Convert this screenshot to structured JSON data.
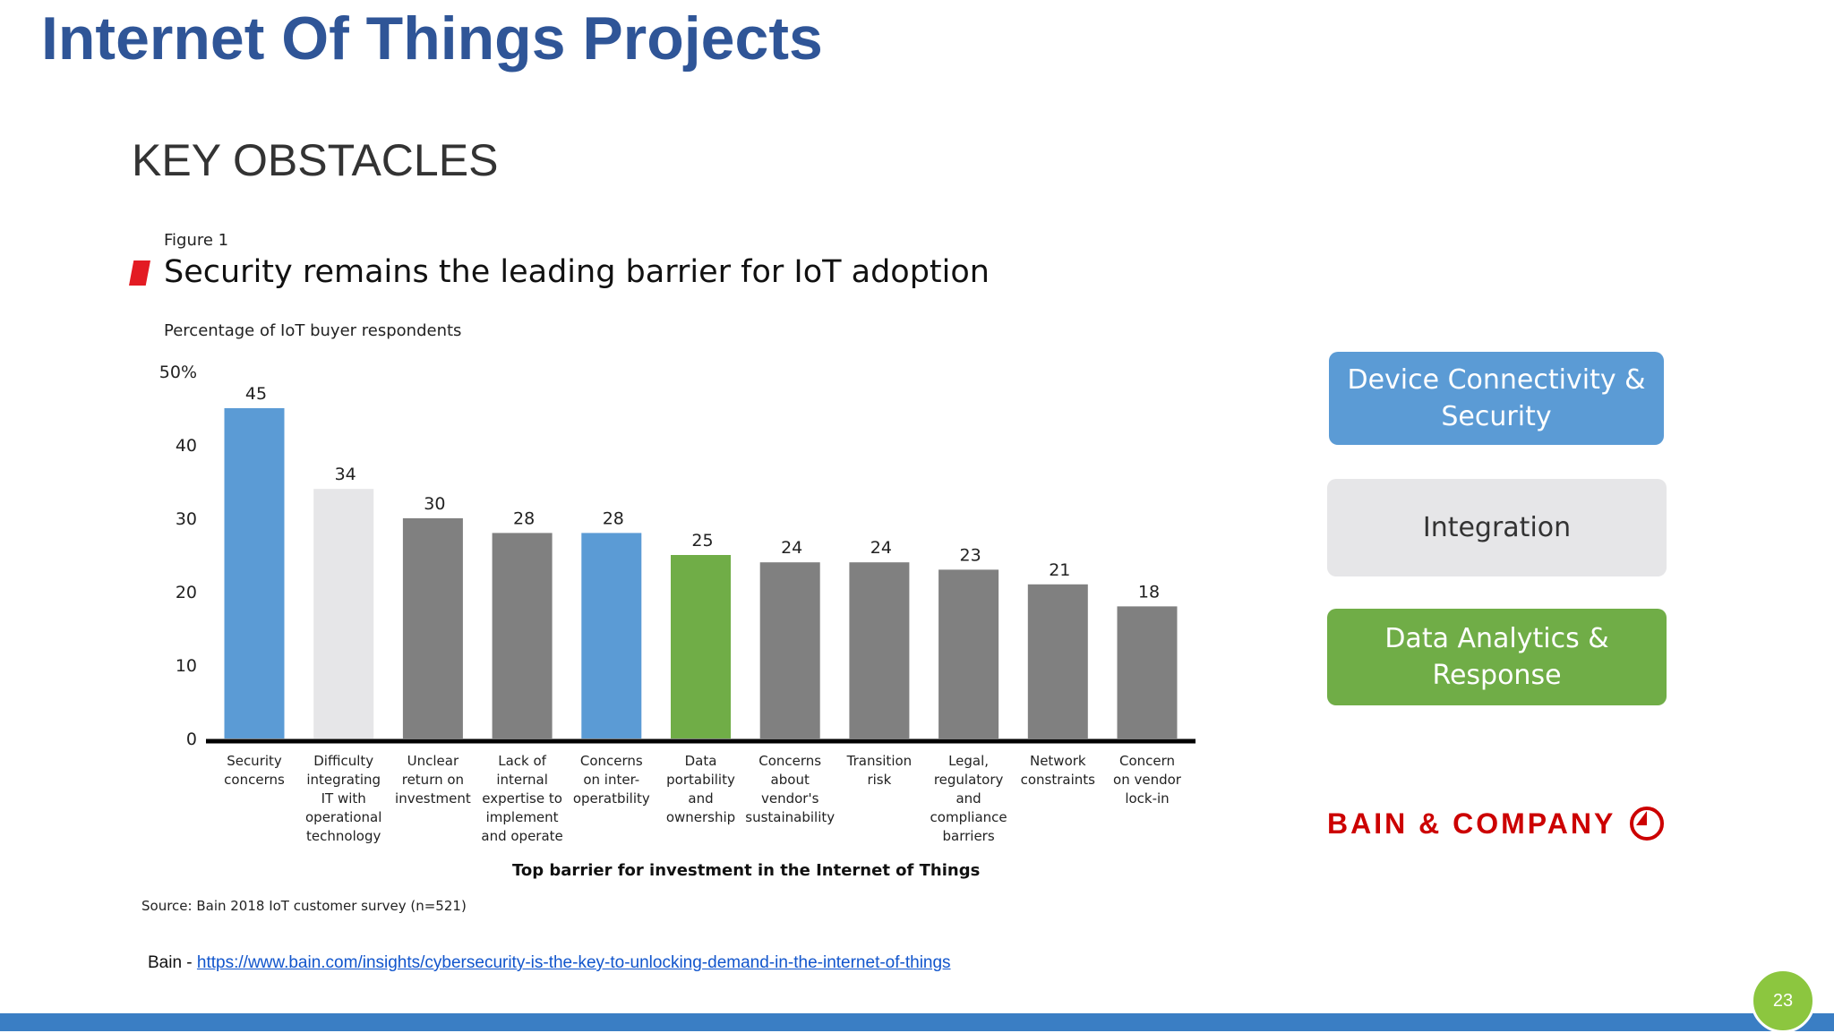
{
  "slide": {
    "title": "Internet Of Things Projects",
    "section_title": "KEY OBSTACLES",
    "page_number": "23"
  },
  "figure": {
    "label": "Figure 1",
    "source": "Source: Bain 2018 IoT customer survey (n=521)"
  },
  "reference": {
    "prefix": "Bain - ",
    "url": "https://www.bain.com/insights/cybersecurity-is-the-key-to-unlocking-demand-in-the-internet-of-things"
  },
  "categories_boxes": [
    {
      "label": "Device Connectivity & Security",
      "color": "#5b9bd5"
    },
    {
      "label": "Integration",
      "color": "#e6e6e8"
    },
    {
      "label": "Data Analytics & Response",
      "color": "#70ad47"
    }
  ],
  "logo": {
    "text": "BAIN & COMPANY",
    "icon": "bain-compass-icon",
    "color": "#cc0000"
  },
  "chart_data": {
    "type": "bar",
    "title": "Security remains the leading barrier for IoT adoption",
    "ylabel": "Percentage of IoT buyer respondents",
    "xlabel": "Top barrier for investment in the Internet of Things",
    "ylim": [
      0,
      50
    ],
    "yticks": [
      "0",
      "10",
      "20",
      "30",
      "40",
      "50%"
    ],
    "grid": false,
    "categories": [
      "Security concerns",
      "Difficulty integrating IT with operational technology",
      "Unclear return on investment",
      "Lack of internal expertise to implement and operate",
      "Concerns on inter-operatbility",
      "Data portability and ownership",
      "Concerns about vendor's sustainability",
      "Transition risk",
      "Legal, regulatory and compliance barriers",
      "Network constraints",
      "Concern on vendor lock-in"
    ],
    "category_lines": [
      [
        "Security",
        "concerns"
      ],
      [
        "Difficulty",
        "integrating",
        "IT with",
        "operational",
        "technology"
      ],
      [
        "Unclear",
        "return on",
        "investment"
      ],
      [
        "Lack of",
        "internal",
        "expertise to",
        "implement",
        "and operate"
      ],
      [
        "Concerns",
        "on inter-",
        "operatbility"
      ],
      [
        "Data",
        "portability",
        "and",
        "ownership"
      ],
      [
        "Concerns",
        "about",
        "vendor's",
        "sustainability"
      ],
      [
        "Transition",
        "risk"
      ],
      [
        "Legal,",
        "regulatory",
        "and",
        "compliance",
        "barriers"
      ],
      [
        "Network",
        "constraints"
      ],
      [
        "Concern",
        "on vendor",
        "lock-in"
      ]
    ],
    "values": [
      45,
      34,
      30,
      28,
      28,
      25,
      24,
      24,
      23,
      21,
      18
    ],
    "colors": [
      "#5b9bd5",
      "#e6e6e8",
      "#808080",
      "#808080",
      "#5b9bd5",
      "#70ad47",
      "#808080",
      "#808080",
      "#808080",
      "#808080",
      "#808080"
    ]
  }
}
